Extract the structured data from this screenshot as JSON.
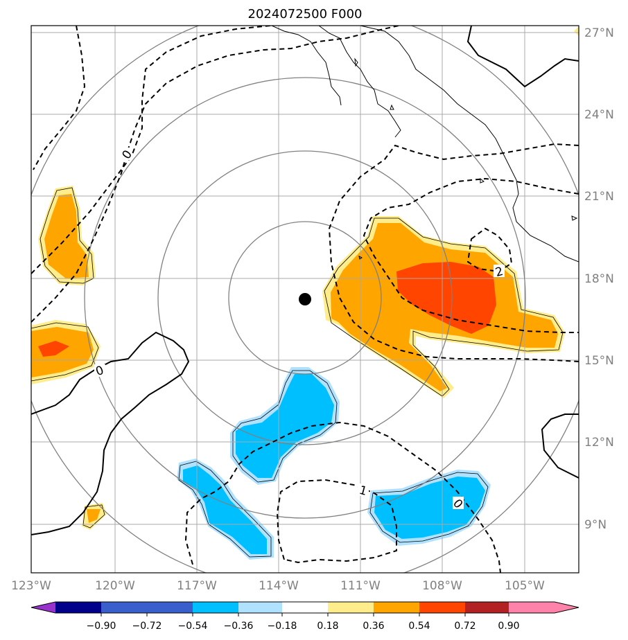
{
  "title": "2024072500 F000",
  "longitude_labels": [
    "123°W",
    "120°W",
    "117°W",
    "114°W",
    "111°W",
    "108°W",
    "105°W"
  ],
  "latitude_labels": [
    "27°N",
    "24°N",
    "21°N",
    "18°N",
    "15°N",
    "12°N",
    "9°N"
  ],
  "contour_labels": [
    "0",
    "0",
    "2",
    "1",
    "0"
  ],
  "colorbar": {
    "tick_labels": [
      "−0.90",
      "−0.72",
      "−0.54",
      "−0.36",
      "−0.18",
      "0.18",
      "0.36",
      "0.54",
      "0.72",
      "0.90"
    ],
    "colors": [
      "#9932cc",
      "#00008b",
      "#3a5fcd",
      "#00bfff",
      "#b0e2ff",
      "#ffffff",
      "#ffec8b",
      "#ffa500",
      "#ff4500",
      "#b22222",
      "#ff82ab"
    ]
  },
  "center_marker": "storm-center-dot",
  "colors": {
    "positive_light": "#ffec8b",
    "positive_mid": "#ffa500",
    "positive_strong": "#ff4500",
    "negative_light": "#b0e2ff",
    "negative_mid": "#00bfff",
    "grid": "#a9a9a9",
    "range_rings": "#808080"
  }
}
